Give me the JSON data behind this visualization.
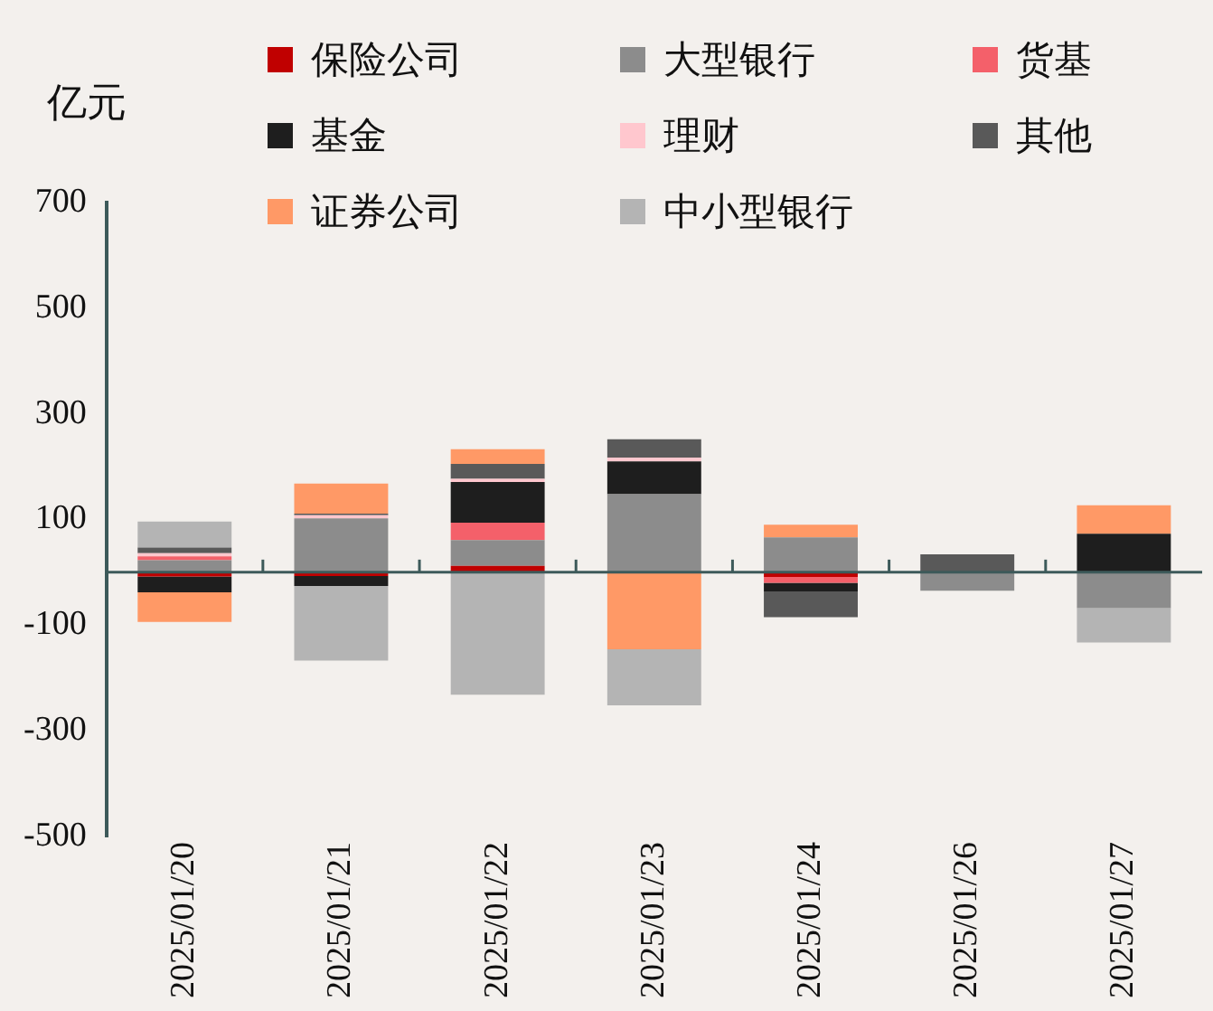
{
  "chart_data": {
    "type": "bar",
    "ylabel": "亿元",
    "stacked": true,
    "legend": "top",
    "grid": false,
    "categories": [
      "2025/01/20",
      "2025/01/21",
      "2025/01/22",
      "2025/01/23",
      "2025/01/24",
      "2025/01/26",
      "2025/01/27"
    ],
    "series": [
      {
        "name": "保险公司",
        "color": "#c00000",
        "values": [
          -8,
          -7,
          12,
          0,
          -9,
          0,
          null
        ]
      },
      {
        "name": "大型银行",
        "color": "#8c8c8c",
        "values": [
          23,
          102,
          49,
          148,
          66,
          -35,
          -68
        ]
      },
      {
        "name": "货基",
        "color": "#f4606a",
        "values": [
          7,
          0,
          33,
          0,
          -11,
          0,
          0
        ]
      },
      {
        "name": "基金",
        "color": "#1e1e1e",
        "values": [
          -30,
          -19,
          77,
          62,
          -16,
          0,
          73
        ]
      },
      {
        "name": "理财",
        "color": "#ffc7ce",
        "values": [
          6,
          6,
          6,
          7,
          0,
          0,
          0
        ]
      },
      {
        "name": "其他",
        "color": "#595959",
        "values": [
          11,
          3,
          28,
          35,
          -49,
          34,
          0
        ]
      },
      {
        "name": "证券公司",
        "color": "#ff9966",
        "values": [
          -56,
          57,
          28,
          -146,
          24,
          0,
          54
        ]
      },
      {
        "name": "中小型银行",
        "color": "#b4b4b4",
        "values": [
          49,
          -141,
          -232,
          -106,
          0,
          0,
          -65
        ]
      }
    ],
    "ylim": [
      -500,
      700
    ],
    "yticks": [
      -500,
      -300,
      -100,
      100,
      300,
      500,
      700
    ]
  }
}
